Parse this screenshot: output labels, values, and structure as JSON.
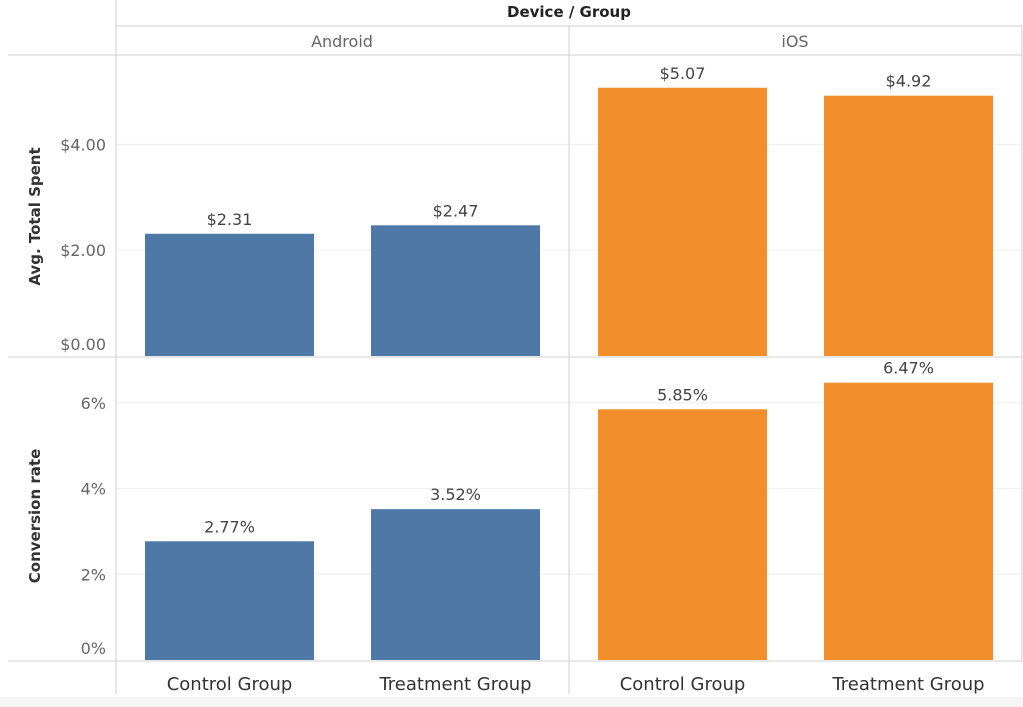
{
  "chart_data": {
    "type": "bar",
    "title": "Device / Group",
    "columns": [
      "Android",
      "iOS"
    ],
    "categories": [
      "Control Group",
      "Treatment Group"
    ],
    "colors": {
      "Android": "#4e79a7",
      "iOS": "#f28e2b"
    },
    "rows": [
      {
        "ylabel": "Avg. Total Spent",
        "ylim": [
          0,
          5.5
        ],
        "ticks": [
          0,
          2,
          4
        ],
        "tick_labels": [
          "$0.00",
          "$2.00",
          "$4.00"
        ],
        "values": {
          "Android": [
            2.31,
            2.47
          ],
          "iOS": [
            5.07,
            4.92
          ]
        },
        "labels": {
          "Android": [
            "$2.31",
            "$2.47"
          ],
          "iOS": [
            "$5.07",
            "$4.92"
          ]
        }
      },
      {
        "ylabel": "Conversion rate",
        "ylim": [
          0,
          7.0
        ],
        "ticks": [
          0,
          2,
          4,
          6
        ],
        "tick_labels": [
          "0%",
          "2%",
          "4%",
          "6%"
        ],
        "values": {
          "Android": [
            2.77,
            3.52
          ],
          "iOS": [
            5.85,
            6.47
          ]
        },
        "labels": {
          "Android": [
            "2.77%",
            "3.52%"
          ],
          "iOS": [
            "5.85%",
            "6.47%"
          ]
        }
      }
    ]
  }
}
